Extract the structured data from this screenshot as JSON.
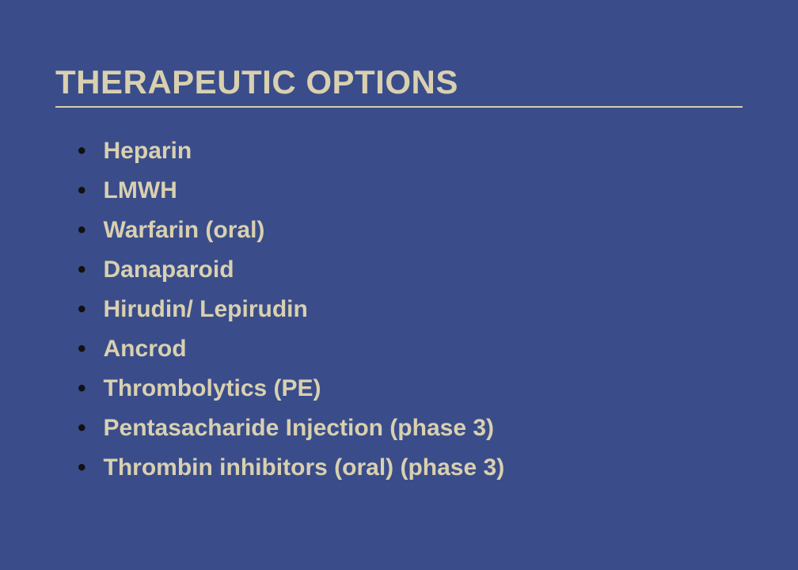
{
  "slide": {
    "title": "THERAPEUTIC OPTIONS",
    "background_color": "#3a4d8a",
    "title_color": "#d9d0b0",
    "title_fontsize": 42,
    "underline_color": "#d9d0b0",
    "bullet_color": "#111111",
    "item_color": "#d9d0b0",
    "item_fontsize": 30,
    "items": [
      "Heparin",
      "LMWH",
      "Warfarin (oral)",
      "Danaparoid",
      "Hirudin/ Lepirudin",
      "Ancrod",
      "Thrombolytics (PE)",
      "Pentasacharide Injection (phase 3)",
      "Thrombin inhibitors  (oral) (phase 3)"
    ]
  }
}
